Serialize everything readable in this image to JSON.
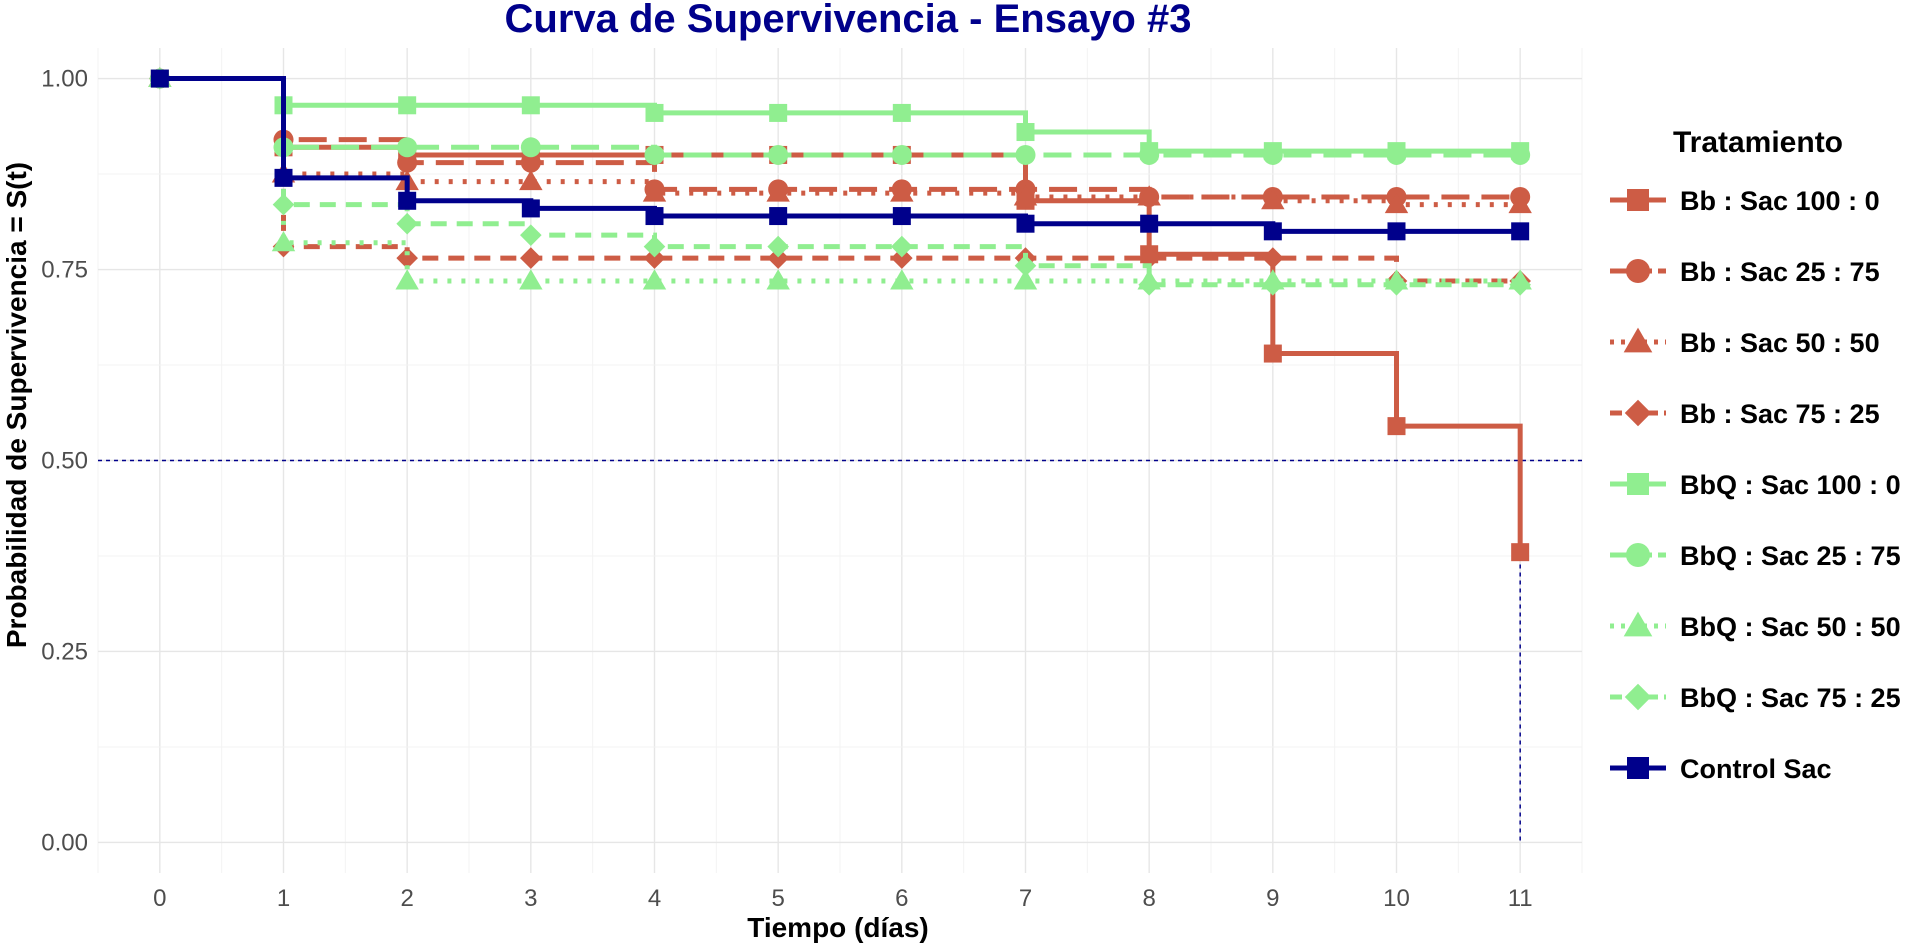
{
  "chart_data": {
    "type": "line",
    "step": true,
    "title": "Curva de Supervivencia - Ensayo #3",
    "xlabel": "Tiempo (días)",
    "ylabel": "Probabilidad de Supervivencia = S(t)",
    "xlim": [
      -0.5,
      11.5
    ],
    "ylim": [
      -0.04,
      1.04
    ],
    "x_ticks": [
      0,
      1,
      2,
      3,
      4,
      5,
      6,
      7,
      8,
      9,
      10,
      11
    ],
    "x_tick_labels": [
      "0",
      "1",
      "2",
      "3",
      "4",
      "5",
      "6",
      "7",
      "8",
      "9",
      "10",
      "11"
    ],
    "y_ticks": [
      0,
      0.25,
      0.5,
      0.75,
      1.0
    ],
    "y_tick_labels": [
      "0.00",
      "0.25",
      "0.50",
      "0.75",
      "1.00"
    ],
    "grid": true,
    "median_line": {
      "y": 0.5,
      "x": 11,
      "color": "#00008B"
    },
    "legend": {
      "title": "Tratamiento",
      "position": "right"
    },
    "series": [
      {
        "name": "Bb : Sac 100 : 0",
        "color": "#CD5C45",
        "linetype": "solid",
        "marker": "square",
        "x": [
          0,
          1,
          2,
          3,
          4,
          5,
          6,
          7,
          8,
          9,
          10,
          11
        ],
        "y": [
          1.0,
          0.91,
          0.9,
          0.9,
          0.9,
          0.9,
          0.9,
          0.84,
          0.77,
          0.64,
          0.545,
          0.38
        ]
      },
      {
        "name": "Bb : Sac 25 : 75",
        "color": "#CD5C45",
        "linetype": "longdash",
        "marker": "circle",
        "x": [
          0,
          1,
          2,
          3,
          4,
          5,
          6,
          7,
          8,
          9,
          10,
          11
        ],
        "y": [
          1.0,
          0.92,
          0.89,
          0.89,
          0.855,
          0.855,
          0.855,
          0.855,
          0.845,
          0.845,
          0.845,
          0.845
        ]
      },
      {
        "name": "Bb : Sac 50 : 50",
        "color": "#CD5C45",
        "linetype": "dotted",
        "marker": "triangle",
        "x": [
          0,
          1,
          2,
          3,
          4,
          5,
          6,
          7,
          8,
          9,
          10,
          11
        ],
        "y": [
          1.0,
          0.875,
          0.865,
          0.865,
          0.85,
          0.85,
          0.85,
          0.845,
          0.845,
          0.84,
          0.835,
          0.835
        ]
      },
      {
        "name": "Bb : Sac 75 : 25",
        "color": "#CD5C45",
        "linetype": "dashed",
        "marker": "diamond",
        "x": [
          0,
          1,
          2,
          3,
          4,
          5,
          6,
          7,
          8,
          9,
          10,
          11
        ],
        "y": [
          1.0,
          0.78,
          0.765,
          0.765,
          0.765,
          0.765,
          0.765,
          0.765,
          0.765,
          0.765,
          0.735,
          0.735
        ]
      },
      {
        "name": "BbQ : Sac 100 : 0",
        "color": "#90EE90",
        "linetype": "solid",
        "marker": "square",
        "x": [
          0,
          1,
          2,
          3,
          4,
          5,
          6,
          7,
          8,
          9,
          10,
          11
        ],
        "y": [
          1.0,
          0.965,
          0.965,
          0.965,
          0.955,
          0.955,
          0.955,
          0.93,
          0.905,
          0.905,
          0.905,
          0.905
        ]
      },
      {
        "name": "BbQ : Sac 25 : 75",
        "color": "#90EE90",
        "linetype": "longdash",
        "marker": "circle",
        "x": [
          0,
          1,
          2,
          3,
          4,
          5,
          6,
          7,
          8,
          9,
          10,
          11
        ],
        "y": [
          1.0,
          0.91,
          0.91,
          0.91,
          0.9,
          0.9,
          0.9,
          0.9,
          0.9,
          0.9,
          0.9,
          0.9
        ]
      },
      {
        "name": "BbQ : Sac 50 : 50",
        "color": "#90EE90",
        "linetype": "dotted",
        "marker": "triangle",
        "x": [
          0,
          1,
          2,
          3,
          4,
          5,
          6,
          7,
          8,
          9,
          10,
          11
        ],
        "y": [
          1.0,
          0.785,
          0.735,
          0.735,
          0.735,
          0.735,
          0.735,
          0.735,
          0.735,
          0.735,
          0.735,
          0.735
        ]
      },
      {
        "name": "BbQ : Sac 75 : 25",
        "color": "#90EE90",
        "linetype": "dashed",
        "marker": "diamond",
        "x": [
          0,
          1,
          2,
          3,
          4,
          5,
          6,
          7,
          8,
          9,
          10,
          11
        ],
        "y": [
          1.0,
          0.835,
          0.81,
          0.795,
          0.78,
          0.78,
          0.78,
          0.755,
          0.73,
          0.73,
          0.73,
          0.73
        ]
      },
      {
        "name": "Control Sac",
        "color": "#00008B",
        "linetype": "solid",
        "marker": "square",
        "x": [
          0,
          1,
          2,
          3,
          4,
          5,
          6,
          7,
          8,
          9,
          10,
          11
        ],
        "y": [
          1.0,
          0.87,
          0.84,
          0.83,
          0.82,
          0.82,
          0.82,
          0.81,
          0.81,
          0.8,
          0.8,
          0.8
        ]
      }
    ]
  }
}
